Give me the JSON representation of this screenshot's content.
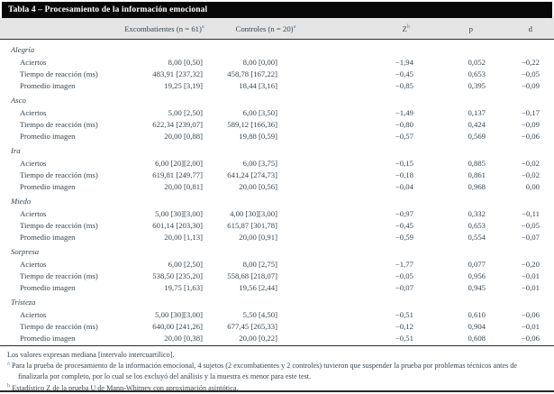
{
  "table": {
    "title": "Tabla 4 – Procesamiento de la información emocional",
    "headers": {
      "excombatientes": "Excombatientes (n = 61)",
      "excombatientes_sup": "a",
      "controles": "Controles (n = 20)",
      "controles_sup": "a",
      "z": "Z",
      "z_sup": "b",
      "p": "p",
      "d": "d"
    },
    "sections": [
      {
        "emotion": "Alegría",
        "rows": [
          {
            "label": "Aciertos",
            "excombatientes": "8,00 [0,50]",
            "controles": "8,00 [0,00]",
            "z": "−1,94",
            "p": "0,052",
            "d": "−0,22"
          },
          {
            "label": "Tiempo de reacción (ms)",
            "excombatientes": "483,91 [237,32]",
            "controles": "458,78 [167,22]",
            "z": "−0,45",
            "p": "0,653",
            "d": "−0,05"
          },
          {
            "label": "Promedio imagen",
            "excombatientes": "19,25 [3,19]",
            "controles": "18,44 [3,16]",
            "z": "−0,85",
            "p": "0,395",
            "d": "−0,09"
          }
        ]
      },
      {
        "emotion": "Asco",
        "rows": [
          {
            "label": "Aciertos",
            "excombatientes": "5,00 [2,50]",
            "controles": "6,00 [3,50]",
            "z": "−1,49",
            "p": "0,137",
            "d": "−0,17"
          },
          {
            "label": "Tiempo de reacción (ms)",
            "excombatientes": "622,34 [239,07]",
            "controles": "589,12 [166,36]",
            "z": "−0,80",
            "p": "0,424",
            "d": "−0,09"
          },
          {
            "label": "Promedio imagen",
            "excombatientes": "20,00 [0,88]",
            "controles": "19,88 [0,59]",
            "z": "−0,57",
            "p": "0,569",
            "d": "−0,06"
          }
        ]
      },
      {
        "emotion": "Ira",
        "rows": [
          {
            "label": "Aciertos",
            "excombatientes": "6,00 [20][2,00]",
            "controles": "6,00 [3,75]",
            "z": "−0,15",
            "p": "0,885",
            "d": "−0,02"
          },
          {
            "label": "Tiempo de reacción (ms)",
            "excombatientes": "619,81 [249,77]",
            "controles": "641,24 [274,73]",
            "z": "−0,18",
            "p": "0,861",
            "d": "−0,02"
          },
          {
            "label": "Promedio imagen",
            "excombatientes": "20,00 [0,81]",
            "controles": "20,00 [0,56]",
            "z": "−0,04",
            "p": "0,968",
            "d": "0,00"
          }
        ]
      },
      {
        "emotion": "Miedo",
        "rows": [
          {
            "label": "Aciertos",
            "excombatientes": "5,00 [30][3,00]",
            "controles": "4,00 [30][3,00]",
            "z": "−0,97",
            "p": "0,332",
            "d": "−0,11"
          },
          {
            "label": "Tiempo de reacción (ms)",
            "excombatientes": "601,14 [203,30]",
            "controles": "615,87 [301,78]",
            "z": "−0,45",
            "p": "0,653",
            "d": "−0,05"
          },
          {
            "label": "Promedio imagen",
            "excombatientes": "20,00 [1,13]",
            "controles": "20,00 [0,91]",
            "z": "−0,59",
            "p": "0,554",
            "d": "−0,07"
          }
        ]
      },
      {
        "emotion": "Sorpresa",
        "rows": [
          {
            "label": "Aciertos",
            "excombatientes": "6,00 [2,50]",
            "controles": "8,00 [2,75]",
            "z": "−1,77",
            "p": "0,077",
            "d": "−0,20"
          },
          {
            "label": "Tiempo de reacción (ms)",
            "excombatientes": "538,50 [235,20]",
            "controles": "558,68 [218,07]",
            "z": "−0,05",
            "p": "0,956",
            "d": "−0,01"
          },
          {
            "label": "Promedio imagen",
            "excombatientes": "19,75 [1,63]",
            "controles": "19,56 [2,44]",
            "z": "−0,07",
            "p": "0,945",
            "d": "−0,01"
          }
        ]
      },
      {
        "emotion": "Tristeza",
        "rows": [
          {
            "label": "Aciertos",
            "excombatientes": "5,00 [30][3,00]",
            "controles": "5,50 [4,50]",
            "z": "−0,51",
            "p": "0,610",
            "d": "−0,06"
          },
          {
            "label": "Tiempo de reacción (ms)",
            "excombatientes": "640,00 [241,26]",
            "controles": "677,45 [265,33]",
            "z": "−0,12",
            "p": "0,904",
            "d": "−0,01"
          },
          {
            "label": "Promedio imagen",
            "excombatientes": "20,00 [0,38]",
            "controles": "20,00 [0,22]",
            "z": "−0,51",
            "p": "0,608",
            "d": "−0,06"
          }
        ]
      }
    ],
    "footnotes": {
      "general": "Los valores expresan mediana [intervalo intercuartílico].",
      "a_marker": "a",
      "a_text": "Para la prueba de procesamiento de la información emocional, 4 sujetos (2 excombatientes y 2 controles) tuvieron que suspender la prueba por problemas técnicos antes de finalizarla por completo, por lo cual se los excluyó del análisis y la muestra es menor para este test.",
      "b_marker": "b",
      "b_text": "Estadístico Z de la prueba U de Mann-Whitney con aproximación asintótica."
    },
    "colors": {
      "title_bar_bg": "#060606",
      "title_text": "#ffffff",
      "header_band_bg": "#e5e5e5",
      "body_text": "#37454f",
      "superscript_accent": "#5d87a3",
      "rule": "#2b2b2b"
    }
  }
}
